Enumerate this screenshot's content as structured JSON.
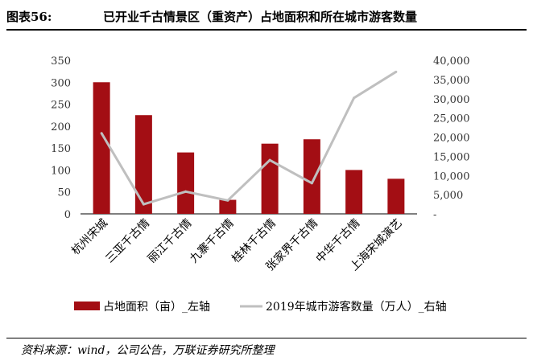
{
  "header": {
    "figure_label": "图表56:",
    "title": "已开业千古情景区（重资产）占地面积和所在城市游客数量"
  },
  "source": "资料来源：wind，公司公告，万联证券研究所整理",
  "colors": {
    "bar": "#a30e14",
    "line": "#bfbfbf",
    "rule": "#000000"
  },
  "chart_data": {
    "type": "bar",
    "categories": [
      "杭州宋城",
      "三亚千古情",
      "丽江千古情",
      "九寨千古情",
      "桂林千古情",
      "张家界千古情",
      "中华千古情",
      "上海宋城演艺"
    ],
    "series": [
      {
        "name": "占地面积（亩）_左轴",
        "type": "bar",
        "axis": "left",
        "values": [
          300,
          225,
          140,
          32,
          160,
          170,
          100,
          80
        ]
      },
      {
        "name": "2019年城市游客数量（万人）_右轴",
        "type": "line",
        "axis": "right",
        "values": [
          21000,
          2500,
          5800,
          3500,
          14000,
          8000,
          30200,
          37000
        ]
      }
    ],
    "y_left": {
      "min": 0,
      "max": 350,
      "ticks": [
        "0",
        "50",
        "100",
        "150",
        "200",
        "250",
        "300",
        "350"
      ]
    },
    "y_right": {
      "min": 0,
      "max": 40000,
      "ticks": [
        "-",
        "5,000",
        "10,000",
        "15,000",
        "20,000",
        "25,000",
        "30,000",
        "35,000",
        "40,000"
      ]
    },
    "grid": false,
    "legend_position": "bottom"
  }
}
